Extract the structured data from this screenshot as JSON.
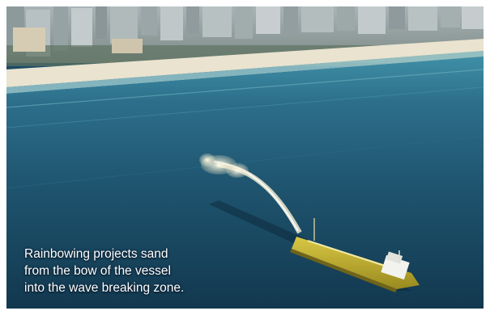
{
  "image": {
    "subject": "dredging-vessel-rainbowing-sand",
    "colors": {
      "deep_water": "#12384f",
      "mid_water": "#1f5570",
      "shallow_water": "#3f8fa6",
      "beach": "#e9e3cf",
      "vessel_hull": "#c9b635",
      "vessel_cabin": "#f2f2ee",
      "spray": "#f3efd6"
    }
  },
  "caption": {
    "lines": [
      "Rainbowing projects sand",
      "from the bow of the vessel",
      "into the wave breaking zone."
    ]
  }
}
